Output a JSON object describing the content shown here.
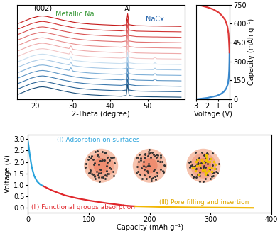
{
  "chart_data": [
    {
      "type": "line",
      "xlabel": "2-Theta (degree)",
      "xlim": [
        15,
        60
      ],
      "xticks": [
        20,
        30,
        40,
        50
      ],
      "ylim": [
        0,
        7.8
      ],
      "tick_labels": "x",
      "x": [
        15,
        17,
        19,
        21,
        22,
        23,
        25,
        27,
        29,
        29.5,
        30,
        31,
        33,
        35,
        38,
        41,
        43,
        44.3,
        44.7,
        45.1,
        47,
        50,
        51.5,
        52,
        52.5,
        54,
        57,
        59
      ],
      "series": [
        {
          "color": "#1b4f7a",
          "values": [
            0.35,
            0.6,
            0.85,
            1.0,
            1.02,
            0.98,
            0.85,
            0.7,
            0.58,
            0.55,
            0.52,
            0.47,
            0.4,
            0.35,
            0.3,
            0.26,
            0.24,
            0.3,
            1.2,
            0.3,
            0.22,
            0.2,
            0.19,
            0.19,
            0.19,
            0.18,
            0.17,
            0.16
          ]
        },
        {
          "color": "#2a6496",
          "values": [
            0.8,
            1.05,
            1.3,
            1.45,
            1.47,
            1.43,
            1.3,
            1.15,
            1.03,
            1.0,
            0.97,
            0.92,
            0.85,
            0.8,
            0.75,
            0.71,
            0.69,
            0.75,
            1.65,
            0.75,
            0.67,
            0.65,
            0.64,
            0.64,
            0.64,
            0.63,
            0.62,
            0.61
          ]
        },
        {
          "color": "#3b78ad",
          "values": [
            1.25,
            1.5,
            1.75,
            1.9,
            1.92,
            1.88,
            1.75,
            1.6,
            1.48,
            1.45,
            1.42,
            1.37,
            1.3,
            1.25,
            1.2,
            1.16,
            1.14,
            1.2,
            2.1,
            1.2,
            1.12,
            1.1,
            1.09,
            1.09,
            1.09,
            1.08,
            1.07,
            1.06
          ]
        },
        {
          "color": "#5b94c4",
          "values": [
            1.7,
            1.95,
            2.2,
            2.35,
            2.37,
            2.33,
            2.2,
            2.05,
            1.93,
            1.9,
            1.87,
            1.82,
            1.75,
            1.7,
            1.65,
            1.61,
            1.59,
            1.65,
            2.55,
            1.65,
            1.57,
            1.55,
            1.54,
            1.66,
            1.54,
            1.53,
            1.52,
            1.51
          ]
        },
        {
          "color": "#7fb0d8",
          "values": [
            2.15,
            2.4,
            2.65,
            2.8,
            2.82,
            2.78,
            2.65,
            2.5,
            2.38,
            2.6,
            2.32,
            2.27,
            2.2,
            2.15,
            2.1,
            2.06,
            2.04,
            2.1,
            3.0,
            2.1,
            2.02,
            2.0,
            1.99,
            2.11,
            1.99,
            1.98,
            1.97,
            1.96
          ]
        },
        {
          "color": "#a7c9e6",
          "values": [
            2.6,
            2.85,
            3.1,
            3.25,
            3.27,
            3.23,
            3.1,
            2.95,
            2.83,
            3.05,
            2.77,
            2.72,
            2.65,
            2.6,
            2.55,
            2.51,
            2.49,
            2.55,
            3.45,
            2.55,
            2.47,
            2.45,
            2.44,
            2.56,
            2.44,
            2.43,
            2.42,
            2.41
          ]
        },
        {
          "color": "#c8dff0",
          "values": [
            3.05,
            3.3,
            3.55,
            3.7,
            3.72,
            3.68,
            3.55,
            3.4,
            3.28,
            3.5,
            3.22,
            3.17,
            3.1,
            3.05,
            3.0,
            2.96,
            2.94,
            3.0,
            3.9,
            3.0,
            2.92,
            2.9,
            2.89,
            3.01,
            2.89,
            2.88,
            2.87,
            2.86
          ]
        },
        {
          "color": "#f2c6c6",
          "values": [
            3.5,
            3.75,
            4.0,
            4.15,
            4.17,
            4.13,
            4.0,
            3.85,
            3.73,
            3.95,
            3.67,
            3.62,
            3.55,
            3.5,
            3.45,
            3.41,
            3.39,
            3.45,
            4.35,
            3.45,
            3.37,
            3.35,
            3.34,
            3.46,
            3.34,
            3.33,
            3.32,
            3.31
          ]
        },
        {
          "color": "#eeaaaa",
          "values": [
            3.95,
            4.2,
            4.45,
            4.6,
            4.62,
            4.58,
            4.45,
            4.3,
            4.18,
            4.4,
            4.12,
            4.07,
            4.0,
            3.95,
            3.9,
            3.86,
            3.84,
            3.9,
            4.8,
            3.9,
            3.82,
            3.8,
            3.79,
            3.79,
            3.79,
            3.78,
            3.77,
            3.76
          ]
        },
        {
          "color": "#e88e8e",
          "values": [
            4.4,
            4.65,
            4.9,
            5.05,
            5.07,
            5.03,
            4.9,
            4.75,
            4.63,
            4.6,
            4.57,
            4.52,
            4.45,
            4.4,
            4.35,
            4.31,
            4.29,
            4.35,
            5.25,
            4.35,
            4.27,
            4.25,
            4.24,
            4.24,
            4.24,
            4.23,
            4.22,
            4.21
          ]
        },
        {
          "color": "#e07070",
          "values": [
            4.85,
            5.1,
            5.35,
            5.5,
            5.52,
            5.48,
            5.35,
            5.2,
            5.08,
            5.05,
            5.02,
            4.97,
            4.9,
            4.85,
            4.8,
            4.76,
            4.74,
            4.8,
            5.7,
            4.8,
            4.72,
            4.7,
            4.69,
            4.69,
            4.69,
            4.68,
            4.67,
            4.66
          ]
        },
        {
          "color": "#d85050",
          "values": [
            5.3,
            5.55,
            5.8,
            5.95,
            5.97,
            5.93,
            5.8,
            5.65,
            5.53,
            5.5,
            5.47,
            5.42,
            5.35,
            5.3,
            5.25,
            5.21,
            5.19,
            5.25,
            6.15,
            5.25,
            5.17,
            5.15,
            5.14,
            5.14,
            5.14,
            5.13,
            5.12,
            5.11
          ]
        },
        {
          "color": "#cf3030",
          "values": [
            5.75,
            6.0,
            6.25,
            6.4,
            6.42,
            6.38,
            6.25,
            6.1,
            5.98,
            5.95,
            5.92,
            5.87,
            5.8,
            5.75,
            5.7,
            5.66,
            5.64,
            5.7,
            6.6,
            5.7,
            5.62,
            5.6,
            5.59,
            5.59,
            5.59,
            5.58,
            5.57,
            5.56
          ]
        },
        {
          "color": "#c41818",
          "values": [
            6.2,
            6.45,
            6.7,
            6.85,
            6.87,
            6.83,
            6.7,
            6.55,
            6.43,
            6.4,
            6.37,
            6.32,
            6.25,
            6.2,
            6.15,
            6.11,
            6.09,
            6.15,
            7.05,
            6.15,
            6.07,
            6.05,
            6.04,
            6.04,
            6.04,
            6.03,
            6.02,
            6.01
          ]
        }
      ],
      "annotations": [
        {
          "text": "(002)",
          "x": 22,
          "y": 7.25,
          "color": "#000000"
        },
        {
          "text": "Metallic Na",
          "x": 30.5,
          "y": 6.75,
          "color": "#3a9a3a"
        },
        {
          "text": "Al",
          "x": 44.7,
          "y": 7.15,
          "color": "#000000"
        },
        {
          "text": "NaCx",
          "x": 52,
          "y": 6.3,
          "color": "#1f5fa8"
        }
      ]
    },
    {
      "type": "line",
      "xlabel": "Voltage (V)",
      "ylabel": "Capacity (mAh g⁻¹)",
      "xlim": [
        3,
        0
      ],
      "xticks": [
        3,
        2,
        1,
        0
      ],
      "ylim": [
        0,
        750
      ],
      "yticks": [
        0,
        150,
        300,
        450,
        600,
        750
      ],
      "series": [
        {
          "color": "#3a8ad0",
          "x": [
            2.9,
            2.0,
            1.2,
            0.8,
            0.5,
            0.3,
            0.15,
            0.08,
            0.04,
            0.02,
            0.01
          ],
          "values": [
            0,
            10,
            25,
            40,
            60,
            85,
            120,
            170,
            230,
            300,
            370
          ]
        },
        {
          "color": "#e03a3a",
          "x": [
            0.01,
            0.05,
            0.1,
            0.2,
            0.4,
            0.7,
            1.0,
            1.5,
            2.0,
            2.5,
            3.0
          ],
          "values": [
            370,
            450,
            520,
            580,
            630,
            665,
            690,
            715,
            730,
            742,
            750
          ]
        }
      ]
    },
    {
      "type": "line",
      "xlabel": "Capacity (mAh g⁻¹)",
      "ylabel": "Voltage (V)",
      "xlim": [
        0,
        400
      ],
      "xticks": [
        0,
        100,
        200,
        300,
        400
      ],
      "ylim": [
        -0.2,
        3.2
      ],
      "yticks": [
        {
          "value": 0,
          "label": "0.0"
        },
        {
          "value": 0.5,
          "label": "0.5"
        },
        {
          "value": 1,
          "label": "1.0"
        },
        {
          "value": 1.5,
          "label": "1.5"
        },
        {
          "value": 2,
          "label": "2.0"
        },
        {
          "value": 2.5,
          "label": "2.5"
        },
        {
          "value": 3,
          "label": "3.0"
        }
      ],
      "series": [
        {
          "color": "#888888",
          "line_style": "dashed",
          "x": [
            0,
            400
          ],
          "values": [
            0,
            0
          ]
        },
        {
          "color": "#29a3dc",
          "line_style": "solid",
          "x": [
            0,
            3,
            6,
            10,
            15,
            20,
            25
          ],
          "values": [
            2.9,
            2.3,
            1.8,
            1.4,
            1.15,
            1.02,
            0.95
          ]
        },
        {
          "color": "#e0262b",
          "line_style": "solid",
          "x": [
            25,
            40,
            60,
            80,
            100,
            130,
            160,
            175
          ],
          "values": [
            0.95,
            0.75,
            0.55,
            0.42,
            0.32,
            0.2,
            0.1,
            0.07
          ]
        },
        {
          "color": "#f2b705",
          "line_style": "solid",
          "x": [
            175,
            220,
            260,
            300,
            340,
            370
          ],
          "values": [
            0.07,
            0.04,
            0.025,
            0.015,
            0.008,
            0.0
          ]
        }
      ],
      "annotations": [
        {
          "text": "(Ⅰ) Adsorption on surfaces",
          "x": 115,
          "y": 2.95,
          "color": "#29a3dc"
        },
        {
          "text": "(Ⅱ) Functional groups absorption",
          "x": 5,
          "y": 0.16,
          "color": "#e0262b"
        },
        {
          "text": "(Ⅲ) Pore filling and insertion",
          "x": 215,
          "y": 0.1,
          "color": "#e0a800"
        }
      ]
    }
  ]
}
